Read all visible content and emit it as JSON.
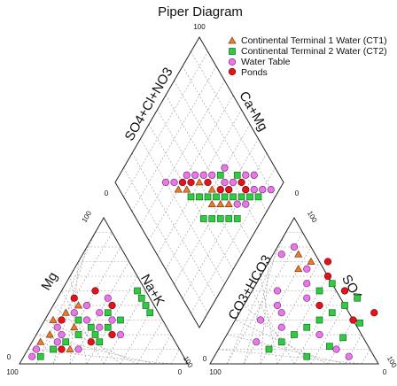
{
  "chart_data": {
    "type": "scatter",
    "title": "Piper Diagram",
    "axis_labels": {
      "cation_left": "Mg",
      "cation_right": "Na+K",
      "anion_left": "CO3+HCO3",
      "anion_right": "SO4",
      "diamond_left": "SO4+Cl+NO3",
      "diamond_right": "Ca+Mg"
    },
    "ticks": {
      "cation_mg_top": "100",
      "cation_left_corner": "100",
      "cation_left_zero": "0",
      "cation_right_zero": "0",
      "cation_right_corner": "100",
      "anion_left_zero": "0",
      "anion_left_corner": "100",
      "anion_top": "100",
      "anion_right_zero": "0",
      "anion_right_corner": "100",
      "diamond_top": "100",
      "diamond_left": "0",
      "diamond_right": "0"
    },
    "grid": true,
    "legend_position": "top-right",
    "series": [
      {
        "name": "Continental Terminal 1 Water (CT1)",
        "color": "#f07a2a",
        "marker": "triangle",
        "cation": [
          [
            40,
            15
          ],
          [
            35,
            10
          ],
          [
            30,
            5
          ],
          [
            25,
            20
          ],
          [
            15,
            5
          ],
          [
            10,
            25
          ],
          [
            20,
            8
          ]
        ],
        "anion": [
          [
            65,
            20
          ],
          [
            70,
            25
          ],
          [
            75,
            15
          ]
        ],
        "diamond": [
          [
            40,
            55
          ],
          [
            35,
            50
          ],
          [
            30,
            55
          ],
          [
            25,
            60
          ],
          [
            45,
            45
          ],
          [
            60,
            35
          ],
          [
            50,
            50
          ],
          [
            55,
            40
          ]
        ]
      },
      {
        "name": "Continental Terminal 2 Water (CT2)",
        "color": "#2ecc40",
        "marker": "square",
        "cation": [
          [
            45,
            50
          ],
          [
            40,
            55
          ],
          [
            30,
            45
          ],
          [
            25,
            40
          ],
          [
            20,
            35
          ],
          [
            35,
            60
          ],
          [
            15,
            20
          ],
          [
            10,
            15
          ],
          [
            5,
            10
          ],
          [
            50,
            45
          ],
          [
            30,
            20
          ],
          [
            20,
            25
          ],
          [
            25,
            30
          ],
          [
            35,
            35
          ],
          [
            15,
            40
          ]
        ],
        "anion": [
          [
            10,
            30
          ],
          [
            15,
            35
          ],
          [
            20,
            40
          ],
          [
            25,
            45
          ],
          [
            30,
            50
          ],
          [
            35,
            55
          ],
          [
            40,
            60
          ],
          [
            45,
            65
          ],
          [
            50,
            40
          ],
          [
            55,
            45
          ],
          [
            5,
            55
          ],
          [
            12,
            65
          ],
          [
            18,
            70
          ],
          [
            28,
            75
          ]
        ],
        "diamond": [
          [
            10,
            80
          ],
          [
            15,
            75
          ],
          [
            20,
            70
          ],
          [
            25,
            65
          ],
          [
            30,
            60
          ],
          [
            35,
            55
          ],
          [
            40,
            50
          ],
          [
            45,
            45
          ],
          [
            50,
            40
          ],
          [
            20,
            55
          ],
          [
            25,
            50
          ],
          [
            30,
            45
          ],
          [
            35,
            40
          ],
          [
            15,
            60
          ],
          [
            30,
            75
          ],
          [
            40,
            65
          ]
        ]
      },
      {
        "name": "Water Table",
        "color": "#e877e8",
        "marker": "circle",
        "cation": [
          [
            30,
            40
          ],
          [
            35,
            30
          ],
          [
            25,
            35
          ],
          [
            20,
            50
          ],
          [
            10,
            30
          ],
          [
            15,
            15
          ],
          [
            5,
            5
          ],
          [
            40,
            20
          ],
          [
            35,
            15
          ],
          [
            25,
            10
          ],
          [
            45,
            30
          ],
          [
            10,
            5
          ],
          [
            20,
            15
          ],
          [
            30,
            25
          ]
        ],
        "anion": [
          [
            15,
            20
          ],
          [
            25,
            30
          ],
          [
            35,
            25
          ],
          [
            45,
            35
          ],
          [
            55,
            30
          ],
          [
            65,
            25
          ],
          [
            5,
            80
          ],
          [
            10,
            70
          ],
          [
            75,
            5
          ],
          [
            80,
            10
          ],
          [
            30,
            15
          ],
          [
            40,
            20
          ],
          [
            50,
            15
          ],
          [
            20,
            55
          ]
        ],
        "diamond": [
          [
            5,
            90
          ],
          [
            10,
            85
          ],
          [
            15,
            80
          ],
          [
            20,
            85
          ],
          [
            25,
            80
          ],
          [
            30,
            70
          ],
          [
            35,
            65
          ],
          [
            40,
            70
          ],
          [
            45,
            60
          ],
          [
            50,
            55
          ],
          [
            55,
            50
          ],
          [
            60,
            45
          ],
          [
            20,
            65
          ],
          [
            15,
            70
          ],
          [
            70,
            30
          ],
          [
            65,
            35
          ]
        ]
      },
      {
        "name": "Ponds",
        "color": "#e8101a",
        "marker": "circle",
        "cation": [
          [
            50,
            20
          ],
          [
            45,
            10
          ],
          [
            40,
            35
          ],
          [
            30,
            10
          ],
          [
            20,
            45
          ],
          [
            15,
            35
          ],
          [
            10,
            20
          ]
        ],
        "anion": [
          [
            40,
            45
          ],
          [
            50,
            55
          ],
          [
            60,
            40
          ],
          [
            70,
            35
          ],
          [
            30,
            70
          ],
          [
            35,
            80
          ]
        ],
        "diamond": [
          [
            25,
            75
          ],
          [
            35,
            60
          ],
          [
            45,
            55
          ],
          [
            55,
            45
          ],
          [
            60,
            40
          ],
          [
            20,
            75
          ],
          [
            30,
            65
          ]
        ]
      }
    ]
  }
}
